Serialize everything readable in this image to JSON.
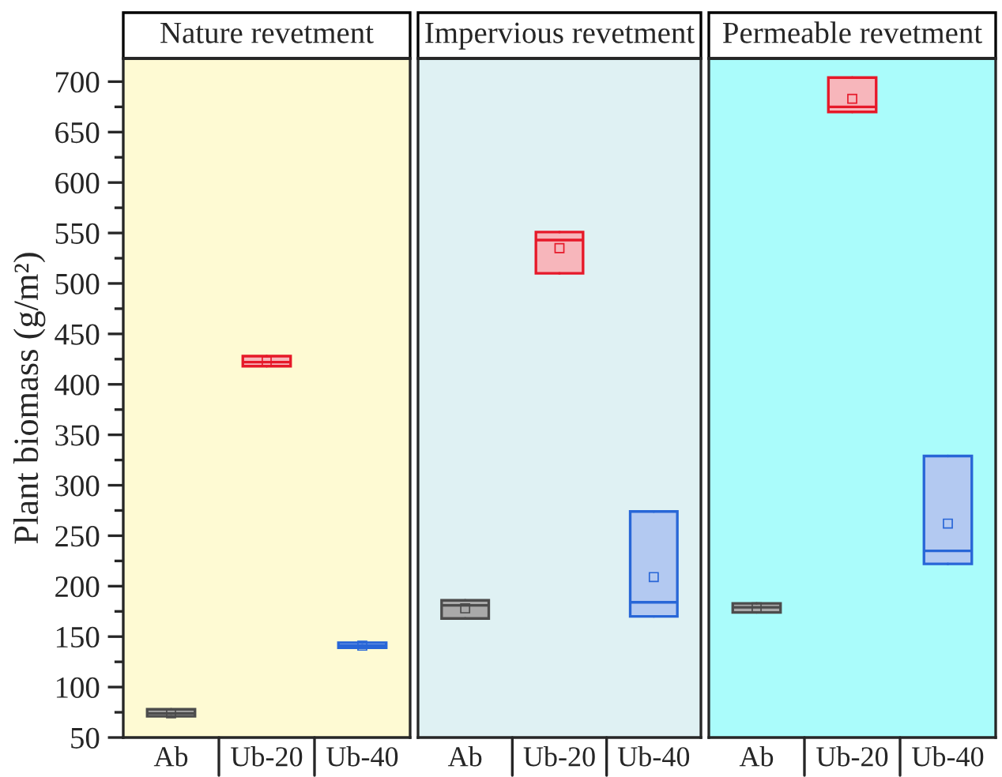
{
  "chart_data": [
    {
      "type": "box",
      "title": "Nature revetment",
      "ylabel": "Plant biomass (g/m²)",
      "categories": [
        "Ab",
        "Ub-20",
        "Ub-40"
      ],
      "colors": [
        "#a9a9a9",
        "#f7b6bb",
        "#b3c9f1"
      ],
      "ylim": [
        50,
        723
      ],
      "yticks": [
        50,
        100,
        150,
        200,
        250,
        300,
        350,
        400,
        450,
        500,
        550,
        600,
        650,
        700
      ],
      "grid": false,
      "boxes": [
        {
          "low": 71,
          "q1": 71,
          "median": 74,
          "q3": 78,
          "high": 78,
          "mean": 74
        },
        {
          "low": 418,
          "q1": 418,
          "median": 422,
          "q3": 428,
          "high": 428,
          "mean": 423
        },
        {
          "low": 139,
          "q1": 139,
          "median": 141,
          "q3": 144,
          "high": 144,
          "mean": 141
        }
      ]
    },
    {
      "type": "box",
      "title": "Impervious revetment",
      "categories": [
        "Ab",
        "Ub-20",
        "Ub-40"
      ],
      "colors": [
        "#a9a9a9",
        "#f7b6bb",
        "#b3c9f1"
      ],
      "ylim": [
        50,
        723
      ],
      "yticks": [
        50,
        100,
        150,
        200,
        250,
        300,
        350,
        400,
        450,
        500,
        550,
        600,
        650,
        700
      ],
      "tick_labels": "x",
      "grid": false,
      "boxes": [
        {
          "low": 168,
          "q1": 168,
          "median": 181,
          "q3": 186,
          "high": 186,
          "mean": 178
        },
        {
          "low": 510,
          "q1": 510,
          "median": 543,
          "q3": 551,
          "high": 551,
          "mean": 535
        },
        {
          "low": 170,
          "q1": 170,
          "median": 184,
          "q3": 274,
          "high": 274,
          "mean": 209
        }
      ]
    },
    {
      "type": "box",
      "title": "Permeable revetment",
      "categories": [
        "Ab",
        "Ub-20",
        "Ub-40"
      ],
      "colors": [
        "#a9a9a9",
        "#f7b6bb",
        "#b3c9f1"
      ],
      "ylim": [
        50,
        723
      ],
      "yticks": [
        50,
        100,
        150,
        200,
        250,
        300,
        350,
        400,
        450,
        500,
        550,
        600,
        650,
        700
      ],
      "tick_labels": "x",
      "grid": false,
      "boxes": [
        {
          "low": 174,
          "q1": 174,
          "median": 179,
          "q3": 183,
          "high": 183,
          "mean": 179
        },
        {
          "low": 670,
          "q1": 670,
          "median": 675,
          "q3": 704,
          "high": 704,
          "mean": 683
        },
        {
          "low": 222,
          "q1": 222,
          "median": 235,
          "q3": 329,
          "high": 329,
          "mean": 262
        }
      ]
    }
  ]
}
